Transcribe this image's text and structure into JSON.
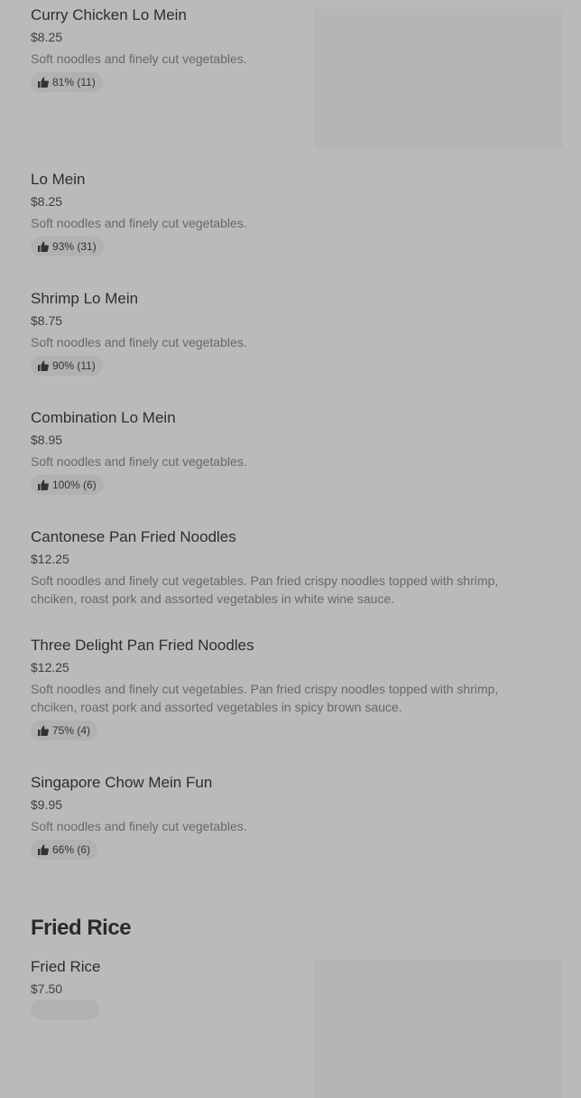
{
  "colors": {
    "background": "#bababa",
    "image_placeholder": "#b5b5b5",
    "badge": "#b1b1b1"
  },
  "items": [
    {
      "name": "Curry Chicken Lo Mein",
      "price": "$8.25",
      "description": "Soft noodles and finely cut vegetables.",
      "rating": "81% (11)",
      "icon": "thumbs-up-icon"
    },
    {
      "name": "Lo Mein",
      "price": "$8.25",
      "description": "Soft noodles and finely cut vegetables.",
      "rating": "93% (31)",
      "icon": "thumbs-up-icon"
    },
    {
      "name": "Shrimp Lo Mein",
      "price": "$8.75",
      "description": "Soft noodles and finely cut vegetables.",
      "rating": "90% (11)",
      "icon": "thumbs-up-icon"
    },
    {
      "name": "Combination Lo Mein",
      "price": "$8.95",
      "description": "Soft noodles and finely cut vegetables.",
      "rating": "100% (6)",
      "icon": "thumbs-up-icon"
    },
    {
      "name": "Cantonese Pan Fried Noodles",
      "price": "$12.25",
      "description": "Soft noodles and finely cut vegetables. Pan fried crispy noodles topped with shrimp, chciken, roast pork and assorted vegetables in white wine sauce."
    },
    {
      "name": "Three Delight Pan Fried Noodles",
      "price": "$12.25",
      "description": "Soft noodles and finely cut vegetables. Pan fried crispy noodles topped with shrimp, chciken, roast pork and assorted vegetables in spicy brown sauce.",
      "rating": "75% (4)",
      "icon": "thumbs-up-icon"
    },
    {
      "name": "Singapore Chow Mein Fun",
      "price": "$9.95",
      "description": "Soft noodles and finely cut vegetables.",
      "rating": "66% (6)",
      "icon": "thumbs-up-icon"
    }
  ],
  "section": {
    "title": "Fried Rice"
  },
  "fried_rice_items": [
    {
      "name": "Fried Rice",
      "price": "$7.50"
    }
  ]
}
